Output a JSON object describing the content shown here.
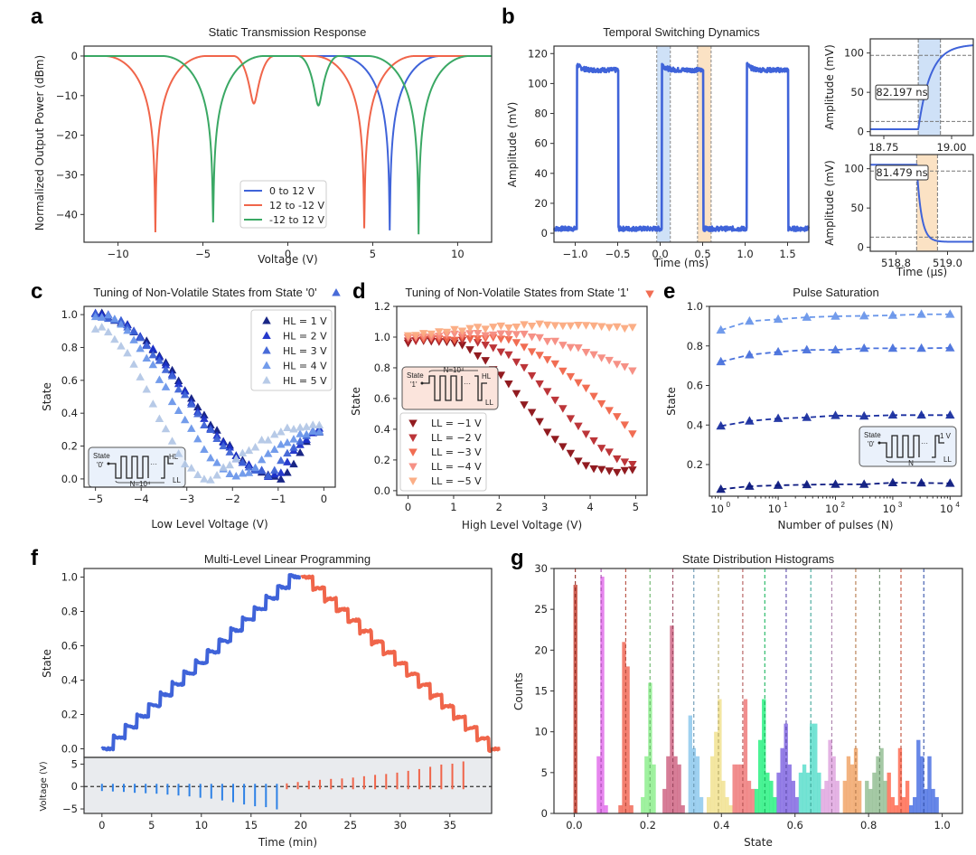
{
  "chart_data": [
    {
      "id": "a",
      "panel_label": "a",
      "type": "line",
      "title": "Static Transmission Response",
      "xlabel": "Voltage (V)",
      "ylabel": "Normalized Output Power (dBm)",
      "xlim": [
        -12,
        12
      ],
      "ylim": [
        -47,
        2.5
      ],
      "xticks": [
        -10,
        -5,
        0,
        5,
        10
      ],
      "yticks": [
        0,
        -10,
        -20,
        -30,
        -40
      ],
      "legend_position": "bottom-center",
      "series": [
        {
          "name": "0 to 12 V",
          "color": "#3f63d9",
          "x_range": [
            0,
            12
          ],
          "dips": [
            {
              "x": 6.0,
              "depth": -44
            }
          ],
          "peaks": [
            0.5,
            10.5
          ]
        },
        {
          "name": "12 to -12 V",
          "color": "#f0654a",
          "x_range": [
            -12,
            12
          ],
          "dips": [
            {
              "x": 4.5,
              "depth": -43.5
            },
            {
              "x": -2.0,
              "depth": -12
            },
            {
              "x": -7.8,
              "depth": -44.5
            }
          ],
          "peaks": [
            10.0,
            0.2,
            -5.1,
            -10.7
          ]
        },
        {
          "name": "-12 to 12 V",
          "color": "#3aa864",
          "x_range": [
            -12,
            12
          ],
          "dips": [
            {
              "x": -4.4,
              "depth": -42
            },
            {
              "x": 1.8,
              "depth": -12.5
            },
            {
              "x": 7.7,
              "depth": -45
            }
          ],
          "peaks": [
            -9.3,
            -0.7,
            5.0,
            10.8
          ]
        }
      ]
    },
    {
      "id": "b_main",
      "panel_label": "b",
      "type": "line",
      "title": "Temporal Switching Dynamics",
      "xlabel": "Time (ms)",
      "ylabel": "Amplitude (mV)",
      "xlim": [
        -1.25,
        1.75
      ],
      "ylim": [
        -6,
        125
      ],
      "xticks": [
        -1.0,
        -0.5,
        0.0,
        0.5,
        1.0,
        1.5
      ],
      "yticks": [
        0,
        20,
        40,
        60,
        80,
        100,
        120
      ],
      "color": "#3f63d9",
      "low_level": 3,
      "high_level": 109,
      "overshoot": 113,
      "pulses": [
        [
          -0.98,
          -0.49
        ],
        [
          0.02,
          0.51
        ],
        [
          1.02,
          1.51
        ]
      ],
      "shaded_regions": [
        {
          "x": [
            -0.04,
            0.12
          ],
          "color": "#cfe1f7"
        },
        {
          "x": [
            0.44,
            0.6
          ],
          "color": "#fbe2c4"
        }
      ]
    },
    {
      "id": "b_rise",
      "type": "line",
      "ylabel": "Amplitude (mV)",
      "xlabel": "",
      "xlim": [
        18.7,
        19.08
      ],
      "ylim": [
        -5,
        118
      ],
      "xticks": [
        18.75,
        19.0
      ],
      "xtick_labels": [
        "18.75",
        "19.00"
      ],
      "yticks": [
        0,
        50,
        100
      ],
      "annotation": "82.197 ns",
      "shaded": [
        18.877,
        18.959
      ],
      "hlines": [
        13,
        97
      ],
      "color": "#3f63d9",
      "shade_color": "#cfe1f7"
    },
    {
      "id": "b_fall",
      "type": "line",
      "ylabel": "Amplitude (mV)",
      "xlabel": "Time (μs)",
      "xlim": [
        518.7,
        519.1
      ],
      "ylim": [
        -5,
        118
      ],
      "xticks": [
        518.8,
        519.0
      ],
      "xtick_labels": [
        "518.8",
        "519.0"
      ],
      "yticks": [
        0,
        50,
        100
      ],
      "annotation": "81.479 ns",
      "shaded": [
        518.88,
        518.961
      ],
      "hlines": [
        13,
        97
      ],
      "color": "#3f63d9",
      "shade_color": "#fbe2c4"
    },
    {
      "id": "c",
      "panel_label": "c",
      "type": "scatter",
      "title": "Tuning of Non-Volatile States from State '0'",
      "title_marker": "up-triangle",
      "xlabel": "Low Level Voltage (V)",
      "ylabel": "State",
      "xlim": [
        -5.25,
        0.25
      ],
      "ylim": [
        -0.05,
        1.05
      ],
      "xticks": [
        -5,
        -4,
        -3,
        -2,
        -1,
        0
      ],
      "yticks": [
        0.0,
        0.2,
        0.4,
        0.6,
        0.8,
        1.0
      ],
      "legend_position": "top-right",
      "inset": {
        "state": "State",
        "start": "'0'",
        "high": "HL",
        "low": "LL",
        "n": "N=10⁴"
      },
      "series": [
        {
          "name": "HL = 1 V",
          "color": "#0d1a80",
          "min_x": -0.85,
          "min_y": 0.0,
          "end_y": 0.3
        },
        {
          "name": "HL = 2 V",
          "color": "#1a2fc9",
          "min_x": -1.0,
          "min_y": 0.02,
          "end_y": 0.3
        },
        {
          "name": "HL = 3 V",
          "color": "#3e63d6",
          "min_x": -1.15,
          "min_y": 0.03,
          "end_y": 0.3
        },
        {
          "name": "HL = 4 V",
          "color": "#6b97ea",
          "min_x": -1.75,
          "min_y": 0.02,
          "end_y": 0.29
        },
        {
          "name": "HL = 5 V",
          "color": "#b3c7e6",
          "min_x": -2.5,
          "min_y": 0.0,
          "end_y": 0.34
        }
      ]
    },
    {
      "id": "d",
      "panel_label": "d",
      "type": "scatter",
      "title": "Tuning of Non-Volatile States from State '1'",
      "title_marker": "down-triangle",
      "xlabel": "High Level Voltage (V)",
      "ylabel": "State",
      "xlim": [
        -0.25,
        5.25
      ],
      "ylim": [
        -0.03,
        1.2
      ],
      "xticks": [
        0,
        1,
        2,
        3,
        4,
        5
      ],
      "yticks": [
        0.0,
        0.2,
        0.4,
        0.6,
        0.8,
        1.0,
        1.2
      ],
      "legend_position": "bottom-left",
      "inset": {
        "state": "State",
        "start": "'1'",
        "high": "HL",
        "low": "LL",
        "n": "N=10⁴"
      },
      "series": [
        {
          "name": "LL = −1 V",
          "color": "#8b0f14",
          "end_y": 0.13,
          "mid_x": 2.6
        },
        {
          "name": "LL = −2 V",
          "color": "#b82a2e",
          "end_y": 0.15,
          "mid_x": 3.3
        },
        {
          "name": "LL = −3 V",
          "color": "#f0654a",
          "end_y": 0.35,
          "mid_x": 4.5
        },
        {
          "name": "LL = −4 V",
          "color": "#f58b80",
          "end_y": 0.77,
          "mid_x": 5.6
        },
        {
          "name": "LL = −5 V",
          "color": "#fbaa80",
          "end_y": 1.0,
          "mid_x": 99
        }
      ]
    },
    {
      "id": "e",
      "panel_label": "e",
      "type": "line",
      "title": "Pulse Saturation",
      "xlabel": "Number of pulses (N)",
      "ylabel": "State",
      "xscale": "log",
      "xlim_log10": [
        -0.2,
        4.2
      ],
      "ylim": [
        0.04,
        1.0
      ],
      "xticks_log10": [
        0,
        1,
        2,
        3,
        4
      ],
      "yticks": [
        0.2,
        0.4,
        0.6,
        0.8,
        1.0
      ],
      "x": [
        1,
        3.16,
        10,
        31.6,
        100,
        316,
        1000,
        3162,
        10000
      ],
      "inset": {
        "state": "State",
        "start": "'0'",
        "high": "1 V",
        "low": "LL",
        "n": "N"
      },
      "series": [
        {
          "color": "#6b97ea",
          "values": [
            0.88,
            0.925,
            0.935,
            0.945,
            0.95,
            0.952,
            0.955,
            0.96,
            0.96
          ]
        },
        {
          "color": "#4a72dc",
          "values": [
            0.72,
            0.755,
            0.77,
            0.78,
            0.78,
            0.788,
            0.788,
            0.788,
            0.79
          ]
        },
        {
          "color": "#1a2fa0",
          "values": [
            0.395,
            0.42,
            0.433,
            0.438,
            0.448,
            0.445,
            0.45,
            0.45,
            0.45
          ]
        },
        {
          "color": "#0d1a80",
          "values": [
            0.075,
            0.09,
            0.095,
            0.098,
            0.1,
            0.1,
            0.108,
            0.107,
            0.105
          ]
        }
      ]
    },
    {
      "id": "f",
      "panel_label": "f",
      "type": "line",
      "title": "Multi-Level Linear Programming",
      "xlabel": "Time (min)",
      "ylabel": "State",
      "ylabel_lower": "Voltage (V)",
      "xlim": [
        -1.8,
        39.2
      ],
      "ylim": [
        -0.05,
        1.05
      ],
      "ylim_lower": [
        -6,
        6.5
      ],
      "xticks": [
        0,
        5,
        10,
        15,
        20,
        25,
        30,
        35
      ],
      "yticks": [
        0.0,
        0.2,
        0.4,
        0.6,
        0.8,
        1.0
      ],
      "yticks_lower": [
        -5,
        0,
        5
      ],
      "up_color": "#3f63d9",
      "down_color": "#f0654a",
      "pulse_up_color": "#2f82e6",
      "pulse_down_color": "#f0654a",
      "steps": 16,
      "step_period_min": 1.18,
      "up_pulse_voltages": [
        -1,
        -1.1,
        -1.2,
        -1.4,
        -1.5,
        -1.6,
        -1.8,
        -2,
        -2.2,
        -2.5,
        -2.7,
        -3.1,
        -3.5,
        -4,
        -4.4,
        -4.6,
        -5.1
      ],
      "down_pulse_voltages": [
        0.7,
        1,
        1.3,
        1.5,
        1.7,
        1.8,
        2,
        2.3,
        2.6,
        2.8,
        3.1,
        3.5,
        3.9,
        4.4,
        4.9,
        5.1,
        5.6
      ]
    },
    {
      "id": "g",
      "panel_label": "g",
      "type": "bar",
      "title": "State Distribution Histograms",
      "xlabel": "State",
      "ylabel": "Counts",
      "xlim": [
        -0.055,
        1.055
      ],
      "ylim": [
        0,
        30
      ],
      "xticks": [
        0.0,
        0.2,
        0.4,
        0.6,
        0.8,
        1.0
      ],
      "yticks": [
        0,
        5,
        10,
        15,
        20,
        25,
        30
      ],
      "bin_width": 0.01,
      "histograms": [
        {
          "mean": 0.003,
          "color": "#c0392b",
          "start": -0.002,
          "counts": [
            28
          ]
        },
        {
          "mean": 0.073,
          "color": "#e066ea",
          "start": 0.061,
          "counts": [
            7,
            29,
            1
          ]
        },
        {
          "mean": 0.14,
          "color": "#f0604e",
          "start": 0.12,
          "counts": [
            1,
            21,
            18,
            1
          ]
        },
        {
          "mean": 0.206,
          "color": "#88ee88",
          "start": 0.181,
          "counts": [
            2,
            7,
            16,
            6
          ]
        },
        {
          "mean": 0.268,
          "color": "#cc5c7d",
          "start": 0.24,
          "counts": [
            3,
            7,
            23,
            7,
            6,
            1
          ]
        },
        {
          "mean": 0.325,
          "color": "#87c6ec",
          "start": 0.31,
          "counts": [
            12,
            8,
            7,
            2
          ]
        },
        {
          "mean": 0.392,
          "color": "#f0e08a",
          "start": 0.36,
          "counts": [
            2,
            7,
            10,
            14,
            4,
            2,
            1
          ]
        },
        {
          "mean": 0.458,
          "color": "#ee7272",
          "start": 0.43,
          "counts": [
            6,
            6,
            6,
            14,
            4,
            3
          ]
        },
        {
          "mean": 0.518,
          "color": "#1ef07a",
          "start": 0.49,
          "counts": [
            3,
            9,
            14,
            5,
            4,
            2
          ]
        },
        {
          "mean": 0.576,
          "color": "#7a5fe0",
          "start": 0.55,
          "counts": [
            5,
            8,
            11,
            6,
            4,
            2
          ]
        },
        {
          "mean": 0.643,
          "color": "#52dcc9",
          "start": 0.61,
          "counts": [
            5,
            6,
            5,
            11,
            11,
            5
          ]
        },
        {
          "mean": 0.7,
          "color": "#dda0dd",
          "start": 0.67,
          "counts": [
            3,
            4,
            9,
            7,
            4
          ]
        },
        {
          "mean": 0.765,
          "color": "#f0a060",
          "start": 0.73,
          "counts": [
            4,
            7,
            6,
            8,
            4
          ]
        },
        {
          "mean": 0.83,
          "color": "#8fbc8f",
          "start": 0.79,
          "counts": [
            4,
            3,
            5,
            7,
            8,
            4
          ]
        },
        {
          "mean": 0.888,
          "color": "#ff6347",
          "start": 0.85,
          "counts": [
            5,
            2,
            1,
            8,
            2,
            4
          ]
        },
        {
          "mean": 0.95,
          "color": "#4169e1",
          "start": 0.91,
          "counts": [
            1,
            2,
            9,
            7,
            3,
            7,
            3,
            2
          ]
        }
      ]
    }
  ]
}
